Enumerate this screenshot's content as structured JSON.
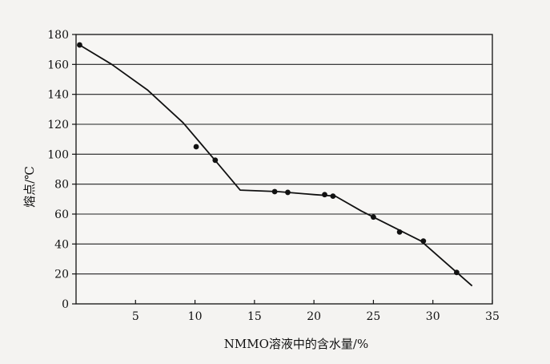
{
  "chart_data": {
    "type": "scatter",
    "title": "",
    "xlabel": "NMMO溶液中的含水量/%",
    "ylabel": "熔点/℃",
    "xlim": [
      0,
      35
    ],
    "ylim": [
      0,
      180
    ],
    "x_ticks": [
      5,
      10,
      15,
      20,
      25,
      30,
      35
    ],
    "y_ticks": [
      0,
      20,
      40,
      60,
      80,
      100,
      120,
      140,
      160,
      180
    ],
    "grid": "horizontal",
    "series": [
      {
        "type": "scatter",
        "x": [
          0.3,
          10.1,
          11.7,
          16.7,
          17.8,
          20.9,
          21.6,
          25.0,
          27.2,
          29.2,
          32.0
        ],
        "y": [
          173,
          105,
          96,
          75,
          74.5,
          73,
          72,
          58,
          48,
          42,
          21
        ]
      },
      {
        "type": "line",
        "x": [
          0.3,
          3,
          6,
          9,
          12,
          13.8,
          17,
          20,
          21.8,
          24,
          26.5,
          29,
          31,
          33.3
        ],
        "y": [
          173,
          160,
          143,
          121,
          93,
          76,
          75,
          73,
          72,
          62,
          52,
          42,
          28,
          12
        ]
      }
    ]
  }
}
